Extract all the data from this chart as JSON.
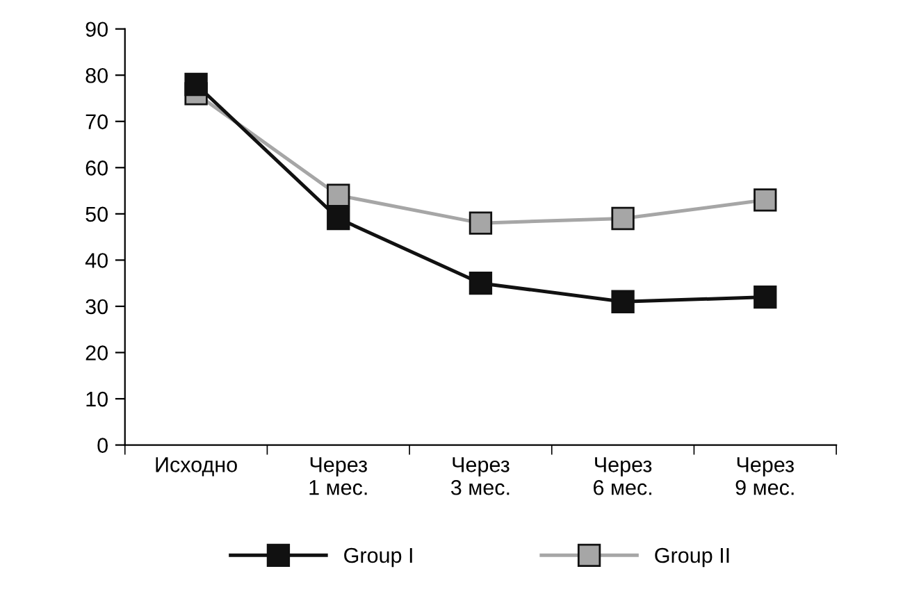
{
  "chart_data": {
    "type": "line",
    "categories": [
      "Исходно",
      "Через\n1 мес.",
      "Через\n3 мес.",
      "Через\n6 мес.",
      "Через\n9 мес."
    ],
    "series": [
      {
        "name": "Group I",
        "color": "#111111",
        "values": [
          78,
          49,
          35,
          31,
          32
        ]
      },
      {
        "name": "Group II",
        "color": "#a6a6a6",
        "values": [
          76,
          54,
          48,
          49,
          53
        ]
      }
    ],
    "ylim": [
      0,
      90
    ],
    "yticks": [
      0,
      10,
      20,
      30,
      40,
      50,
      60,
      70,
      80,
      90
    ],
    "grid": false,
    "legend": "bottom",
    "marker": "square",
    "line_style": "solid"
  }
}
